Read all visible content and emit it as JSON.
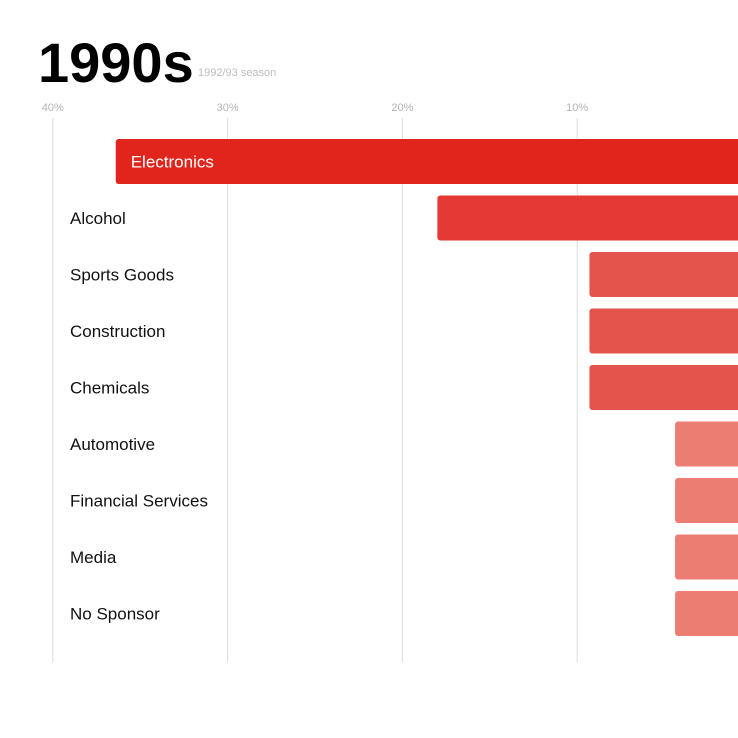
{
  "chart_data": {
    "type": "bar",
    "orientation": "horizontal",
    "title": "1990s",
    "subtitle": "1992/93 season",
    "xlabel": "",
    "ylabel": "",
    "xlim": [
      0,
      40
    ],
    "grid": true,
    "x_axis_position": "top",
    "x_axis_reversed": true,
    "x_ticks": [
      40,
      30,
      20,
      10
    ],
    "x_tick_labels": [
      "40%",
      "30%",
      "20%",
      "10%"
    ],
    "categories": [
      "Electronics",
      "Alcohol",
      "Sports Goods",
      "Construction",
      "Chemicals",
      "Automotive",
      "Financial Services",
      "Media",
      "No Sponsor"
    ],
    "values": [
      36.4,
      18,
      9.3,
      9.3,
      9.3,
      4.4,
      4.4,
      4.4,
      4.4
    ],
    "bar_colors": [
      "#e0251c",
      "#e43a36",
      "#e4534c",
      "#e4534c",
      "#e4534c",
      "#eb7d72",
      "#eb7d72",
      "#eb7d72",
      "#eb7d72"
    ],
    "label_inside_bar": [
      true,
      false,
      false,
      false,
      false,
      false,
      false,
      false,
      false
    ]
  }
}
